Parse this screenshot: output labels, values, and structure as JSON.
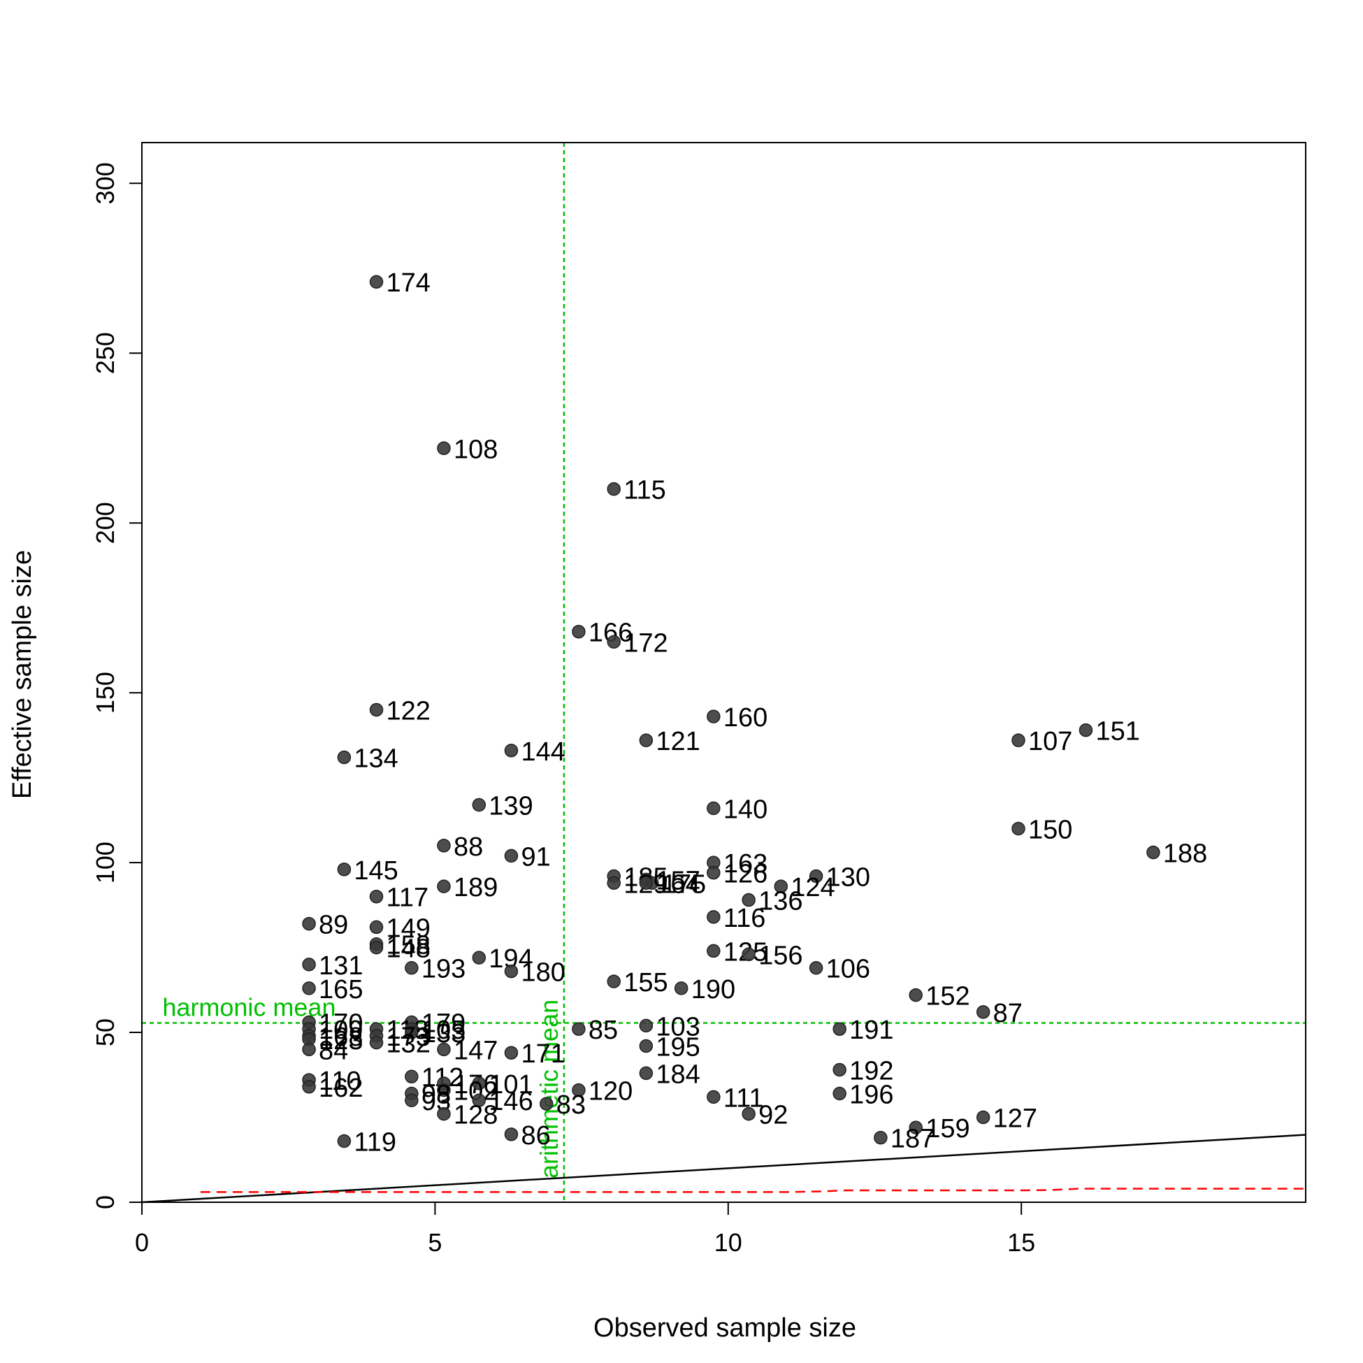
{
  "chart_data": {
    "type": "scatter",
    "title": "",
    "xlabel": "Observed sample size",
    "ylabel": "Effective sample size",
    "xlim": [
      0,
      19.85
    ],
    "ylim": [
      0,
      312
    ],
    "xticks": [
      0,
      5,
      10,
      15
    ],
    "yticks": [
      0,
      50,
      100,
      150,
      200,
      250,
      300
    ],
    "grid": false,
    "point_color": "#3a3a3a",
    "points": [
      {
        "label": "174",
        "x": 4.0,
        "y": 271
      },
      {
        "label": "108",
        "x": 5.15,
        "y": 222
      },
      {
        "label": "115",
        "x": 8.05,
        "y": 210
      },
      {
        "label": "166",
        "x": 7.45,
        "y": 168
      },
      {
        "label": "172",
        "x": 8.05,
        "y": 165
      },
      {
        "label": "122",
        "x": 4.0,
        "y": 145
      },
      {
        "label": "160",
        "x": 9.75,
        "y": 143
      },
      {
        "label": "151",
        "x": 16.1,
        "y": 139
      },
      {
        "label": "121",
        "x": 8.6,
        "y": 136
      },
      {
        "label": "107",
        "x": 14.95,
        "y": 136
      },
      {
        "label": "144",
        "x": 6.3,
        "y": 133
      },
      {
        "label": "134",
        "x": 3.45,
        "y": 131
      },
      {
        "label": "139",
        "x": 5.75,
        "y": 117
      },
      {
        "label": "140",
        "x": 9.75,
        "y": 116
      },
      {
        "label": "150",
        "x": 14.95,
        "y": 110
      },
      {
        "label": "88",
        "x": 5.15,
        "y": 105
      },
      {
        "label": "188",
        "x": 17.25,
        "y": 103
      },
      {
        "label": "91",
        "x": 6.3,
        "y": 102
      },
      {
        "label": "163",
        "x": 9.75,
        "y": 100
      },
      {
        "label": "145",
        "x": 3.45,
        "y": 98
      },
      {
        "label": "126",
        "x": 9.75,
        "y": 97
      },
      {
        "label": "130",
        "x": 11.5,
        "y": 96
      },
      {
        "label": "185",
        "x": 8.05,
        "y": 96
      },
      {
        "label": "157",
        "x": 8.6,
        "y": 95
      },
      {
        "label": "175",
        "x": 8.7,
        "y": 94
      },
      {
        "label": "129",
        "x": 8.05,
        "y": 94
      },
      {
        "label": "164",
        "x": 8.6,
        "y": 94
      },
      {
        "label": "124",
        "x": 10.9,
        "y": 93
      },
      {
        "label": "189",
        "x": 5.15,
        "y": 93
      },
      {
        "label": "117",
        "x": 4.0,
        "y": 90
      },
      {
        "label": "136",
        "x": 10.35,
        "y": 89
      },
      {
        "label": "116",
        "x": 9.75,
        "y": 84
      },
      {
        "label": "89",
        "x": 2.85,
        "y": 82
      },
      {
        "label": "149",
        "x": 4.0,
        "y": 81
      },
      {
        "label": "158",
        "x": 4.0,
        "y": 76
      },
      {
        "label": "148",
        "x": 4.0,
        "y": 75
      },
      {
        "label": "125",
        "x": 9.75,
        "y": 74
      },
      {
        "label": "156",
        "x": 10.35,
        "y": 73
      },
      {
        "label": "194",
        "x": 5.75,
        "y": 72
      },
      {
        "label": "131",
        "x": 2.85,
        "y": 70
      },
      {
        "label": "193",
        "x": 4.6,
        "y": 69
      },
      {
        "label": "106",
        "x": 11.5,
        "y": 69
      },
      {
        "label": "180",
        "x": 6.3,
        "y": 68
      },
      {
        "label": "155",
        "x": 8.05,
        "y": 65
      },
      {
        "label": "190",
        "x": 9.2,
        "y": 63
      },
      {
        "label": "165",
        "x": 2.85,
        "y": 63
      },
      {
        "label": "152",
        "x": 13.2,
        "y": 61
      },
      {
        "label": "87",
        "x": 14.35,
        "y": 56
      },
      {
        "label": "179",
        "x": 4.6,
        "y": 53
      },
      {
        "label": "170",
        "x": 2.85,
        "y": 53
      },
      {
        "label": "103",
        "x": 8.6,
        "y": 52
      },
      {
        "label": "109",
        "x": 2.85,
        "y": 51
      },
      {
        "label": "191",
        "x": 11.9,
        "y": 51
      },
      {
        "label": "85",
        "x": 7.45,
        "y": 51
      },
      {
        "label": "118",
        "x": 4.0,
        "y": 51
      },
      {
        "label": "105",
        "x": 4.6,
        "y": 51
      },
      {
        "label": "133",
        "x": 4.6,
        "y": 50
      },
      {
        "label": "168",
        "x": 2.85,
        "y": 49
      },
      {
        "label": "173",
        "x": 4.0,
        "y": 49
      },
      {
        "label": "123",
        "x": 2.85,
        "y": 48
      },
      {
        "label": "132",
        "x": 4.0,
        "y": 47
      },
      {
        "label": "195",
        "x": 8.6,
        "y": 46
      },
      {
        "label": "84",
        "x": 2.85,
        "y": 45
      },
      {
        "label": "147",
        "x": 5.15,
        "y": 45
      },
      {
        "label": "171",
        "x": 6.3,
        "y": 44
      },
      {
        "label": "192",
        "x": 11.9,
        "y": 39
      },
      {
        "label": "184",
        "x": 8.6,
        "y": 38
      },
      {
        "label": "112",
        "x": 4.6,
        "y": 37
      },
      {
        "label": "110",
        "x": 2.85,
        "y": 36
      },
      {
        "label": "176",
        "x": 5.15,
        "y": 35
      },
      {
        "label": "101",
        "x": 5.75,
        "y": 35
      },
      {
        "label": "162",
        "x": 2.85,
        "y": 34
      },
      {
        "label": "102",
        "x": 5.15,
        "y": 33
      },
      {
        "label": "120",
        "x": 7.45,
        "y": 33
      },
      {
        "label": "196",
        "x": 11.9,
        "y": 32
      },
      {
        "label": "98",
        "x": 4.6,
        "y": 32
      },
      {
        "label": "111",
        "x": 9.75,
        "y": 31
      },
      {
        "label": "93",
        "x": 4.6,
        "y": 30
      },
      {
        "label": "146",
        "x": 5.75,
        "y": 30
      },
      {
        "label": "83",
        "x": 6.9,
        "y": 29
      },
      {
        "label": "128",
        "x": 5.15,
        "y": 26
      },
      {
        "label": "92",
        "x": 10.35,
        "y": 26
      },
      {
        "label": "127",
        "x": 14.35,
        "y": 25
      },
      {
        "label": "159",
        "x": 13.2,
        "y": 22
      },
      {
        "label": "86",
        "x": 6.3,
        "y": 20
      },
      {
        "label": "187",
        "x": 12.6,
        "y": 19
      },
      {
        "label": "119",
        "x": 3.45,
        "y": 18
      }
    ],
    "reference_lines": {
      "harmonic_mean": {
        "label": "harmonic mean",
        "value": 52.8,
        "color": "#00c000"
      },
      "arithmetic_mean": {
        "label": "arithmetic mean",
        "value": 7.2,
        "color": "#00c000"
      },
      "identity_line": {
        "points": [
          [
            0,
            0
          ],
          [
            19.85,
            19.85
          ]
        ],
        "color": "#000000"
      },
      "lower_bound": {
        "color": "#ff0000",
        "points": [
          [
            1,
            3
          ],
          [
            2,
            3
          ],
          [
            3,
            3
          ],
          [
            4,
            3
          ],
          [
            5,
            3
          ],
          [
            6,
            3
          ],
          [
            7,
            3
          ],
          [
            8,
            3
          ],
          [
            9,
            3
          ],
          [
            10,
            3
          ],
          [
            11,
            3
          ],
          [
            11.6,
            3.2
          ],
          [
            12,
            3.5
          ],
          [
            13,
            3.5
          ],
          [
            14,
            3.5
          ],
          [
            15,
            3.5
          ],
          [
            15.5,
            3.6
          ],
          [
            16,
            4
          ],
          [
            17,
            4
          ],
          [
            18,
            4
          ],
          [
            19,
            4
          ],
          [
            19.85,
            4
          ]
        ]
      }
    }
  }
}
